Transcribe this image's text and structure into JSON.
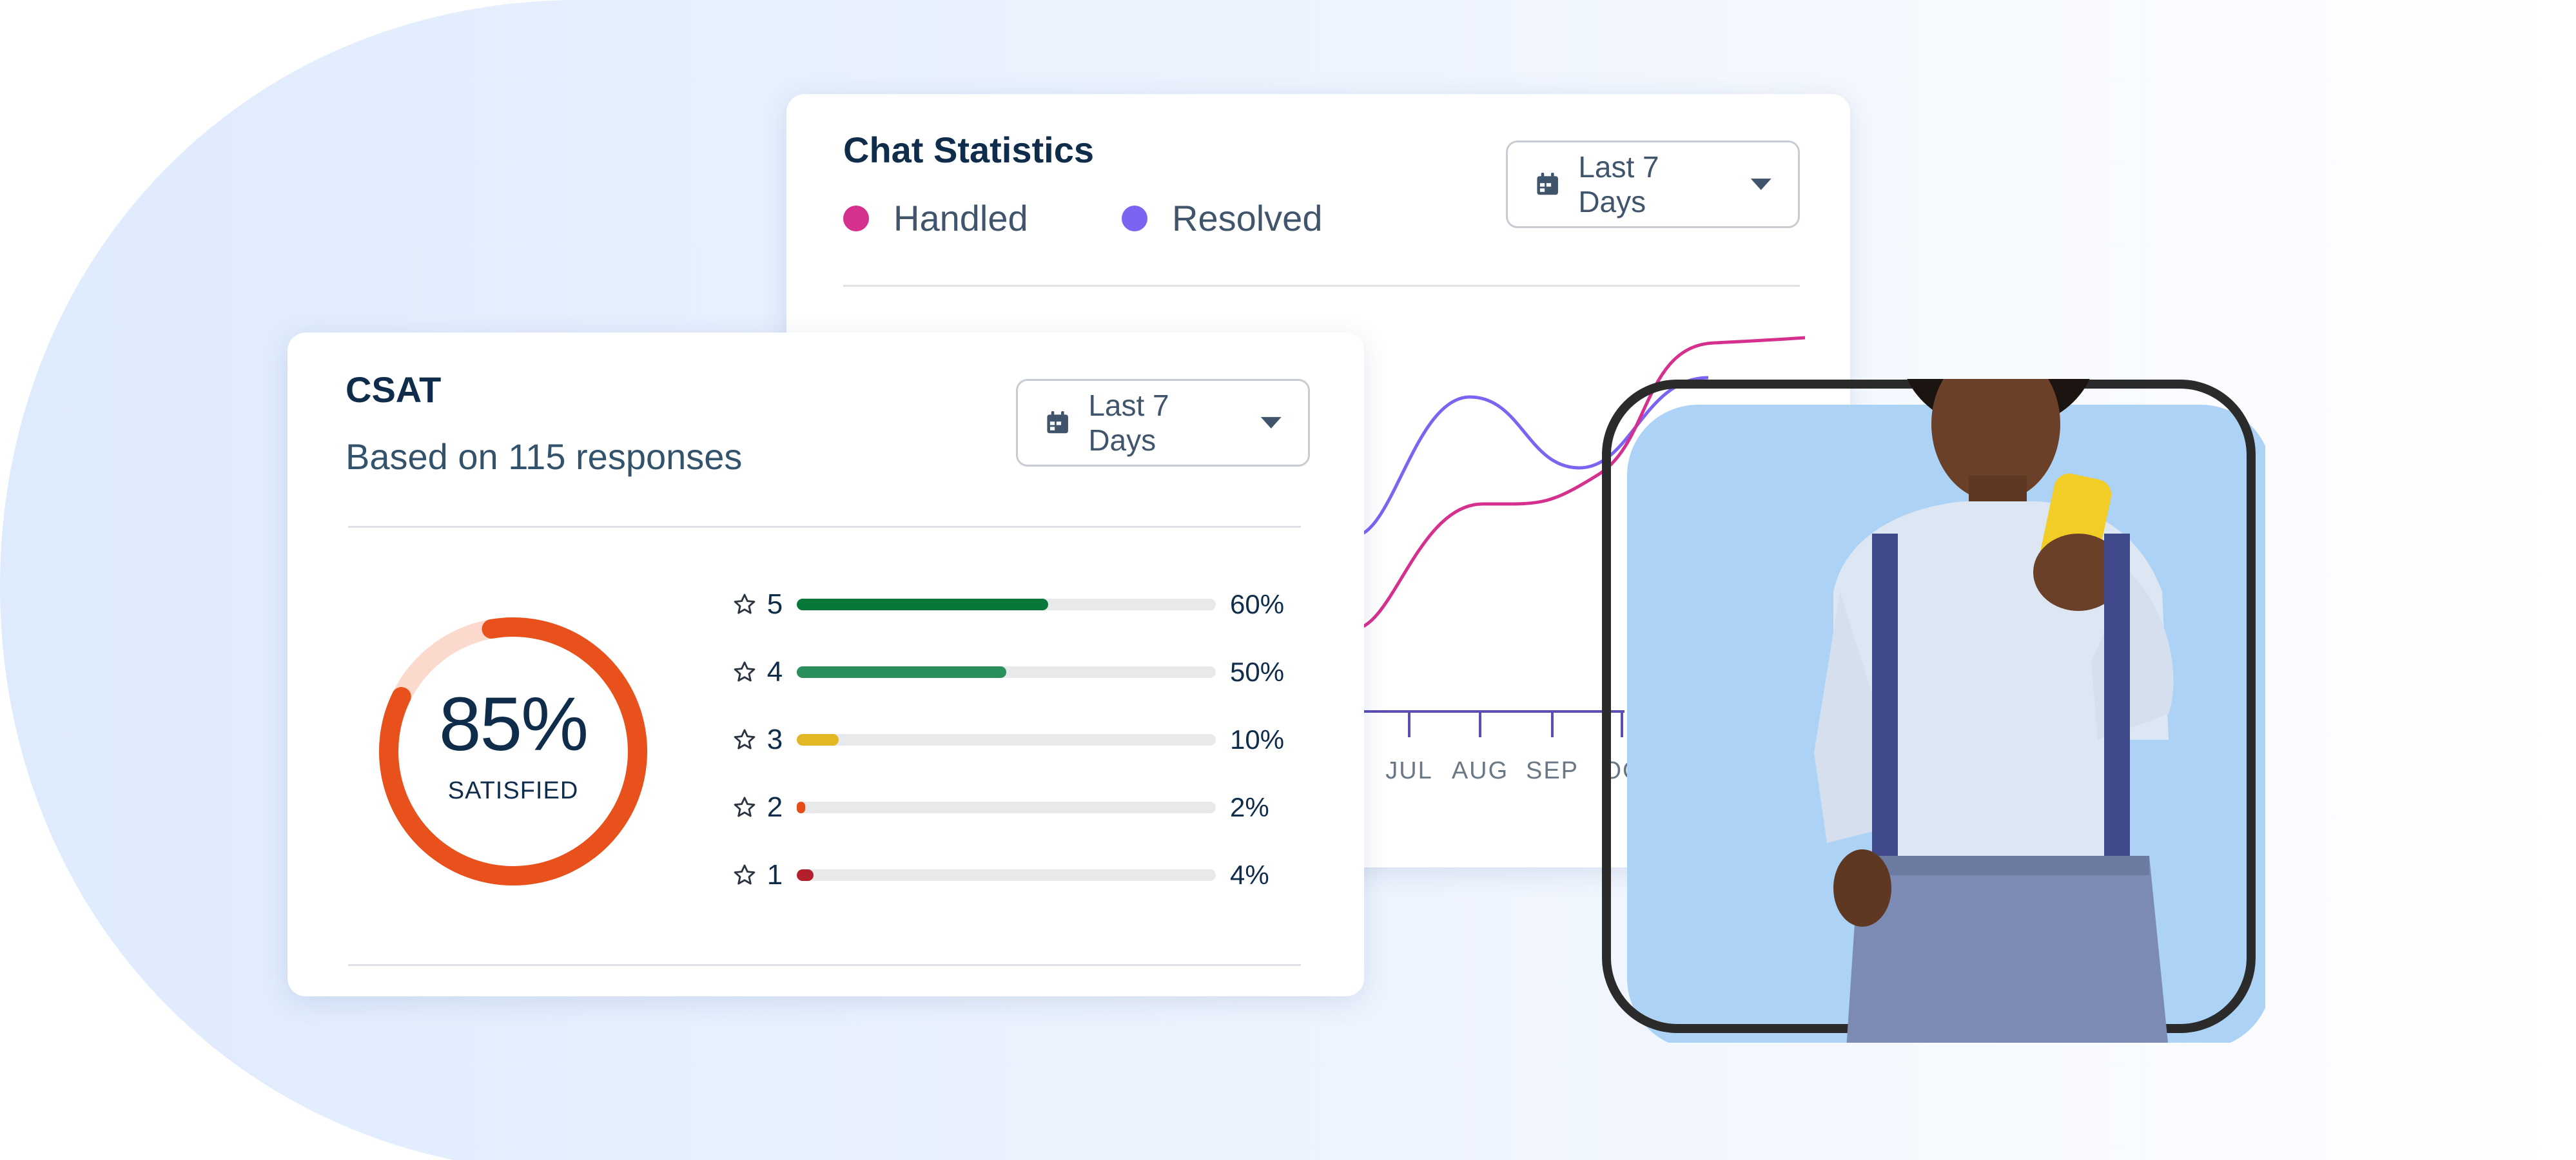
{
  "chat": {
    "title": "Chat Statistics",
    "dropdown_label": "Last 7 Days",
    "legend": [
      {
        "label": "Handled",
        "color": "#d6308f"
      },
      {
        "label": "Resolved",
        "color": "#7a64f2"
      }
    ],
    "months": [
      "JUL",
      "AUG",
      "SEP",
      "OC"
    ]
  },
  "csat": {
    "title": "CSAT",
    "subtitle": "Based on 115 responses",
    "dropdown_label": "Last 7 Days",
    "score": "85%",
    "score_value": 0.85,
    "score_label": "SATISFIED",
    "ratings": [
      {
        "stars": "5",
        "percent": "60%",
        "value": 0.6,
        "color": "#08773a"
      },
      {
        "stars": "4",
        "percent": "50%",
        "value": 0.5,
        "color": "#2a8f5c"
      },
      {
        "stars": "3",
        "percent": "10%",
        "value": 0.1,
        "color": "#e3b623"
      },
      {
        "stars": "2",
        "percent": "2%",
        "value": 0.02,
        "color": "#e54d17"
      },
      {
        "stars": "1",
        "percent": "4%",
        "value": 0.04,
        "color": "#b31f2a"
      }
    ]
  },
  "colors": {
    "accent_orange": "#e8511b",
    "donut_track": "#fbd9cd",
    "photo_bg": "#acd3f5",
    "frame": "#2b2b2b"
  },
  "icons": [
    "calendar-icon",
    "caret-down-icon",
    "star-outline-icon"
  ]
}
